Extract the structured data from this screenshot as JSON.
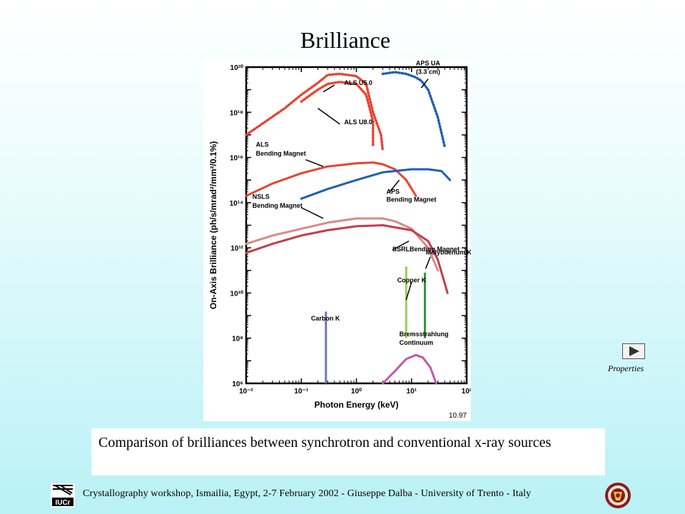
{
  "slide": {
    "title": "Brilliance",
    "caption": "Comparison of  brilliances between synchrotron and conventional x-ray sources",
    "footer": "Crystallography workshop, Ismailia, Egypt, 2-7 February  2002 - Giuseppe Dalba -  University of Trento - Italy",
    "properties_label": "Properties",
    "logo_left": "IUCr",
    "logo_right_icon": "university-seal-icon",
    "properties_icon": "play-triangle-icon"
  },
  "chart_data": {
    "type": "line",
    "xlabel": "Photon Energy (keV)",
    "ylabel": "On-Axis Brilliance (ph/s/mrad²/mm²/0.1%)",
    "xscale": "log",
    "yscale": "log",
    "xlim": [
      0.01,
      100
    ],
    "ylim": [
      1000000.0,
      1e+20
    ],
    "x_ticks": [
      "10⁻²",
      "10⁻¹",
      "10⁰",
      "10¹",
      "10²"
    ],
    "y_ticks": [
      "10⁶",
      "10⁸",
      "10¹⁰",
      "10¹²",
      "10¹⁴",
      "10¹⁶",
      "10¹⁸",
      "10²⁰"
    ],
    "corner_note": "10.97",
    "series": [
      {
        "name": "ALS U5.0",
        "color": "#e8432e",
        "style": "dotted",
        "points": [
          [
            0.01,
            1e+17
          ],
          [
            0.05,
            1.5e+18
          ],
          [
            0.1,
            6e+18
          ],
          [
            0.2,
            2e+19
          ],
          [
            0.3,
            4.5e+19
          ],
          [
            0.5,
            5e+19
          ],
          [
            1,
            4e+19
          ],
          [
            1.5,
            1.8e+19
          ],
          [
            2,
            1e+18
          ],
          [
            2.8,
            1e+17
          ],
          [
            3,
            2e+16
          ]
        ]
      },
      {
        "name": "ALS U8.0",
        "color": "#e8432e",
        "style": "dotted",
        "points": [
          [
            0.1,
            3e+18
          ],
          [
            0.2,
            1e+19
          ],
          [
            0.3,
            1.8e+19
          ],
          [
            0.5,
            2.2e+19
          ],
          [
            1,
            1.8e+19
          ],
          [
            1.5,
            6e+18
          ],
          [
            2,
            4e+17
          ],
          [
            2,
            3e+16
          ]
        ]
      },
      {
        "name": "APS UA (3.3 cm)",
        "color": "#1d5fb5",
        "style": "dotted",
        "points": [
          [
            3,
            5e+19
          ],
          [
            5,
            6e+19
          ],
          [
            8,
            5e+19
          ],
          [
            12,
            3.5e+19
          ],
          [
            15,
            2.5e+19
          ],
          [
            20,
            1e+19
          ],
          [
            30,
            6e+17
          ],
          [
            40,
            3e+16
          ]
        ]
      },
      {
        "name": "ALS Bending Magnet",
        "color": "#e8432e",
        "style": "solid",
        "points": [
          [
            0.01,
            200000000000000.0
          ],
          [
            0.03,
            700000000000000.0
          ],
          [
            0.1,
            2000000000000000.0
          ],
          [
            0.3,
            4000000000000000.0
          ],
          [
            1,
            5500000000000000.0
          ],
          [
            2,
            6000000000000000.0
          ],
          [
            3,
            5000000000000000.0
          ],
          [
            5,
            3000000000000000.0
          ],
          [
            8,
            1000000000000000.0
          ],
          [
            12,
            200000000000000.0
          ]
        ]
      },
      {
        "name": "APS Bending Magnet",
        "color": "#1d5fb5",
        "style": "solid",
        "points": [
          [
            0.1,
            150000000000000.0
          ],
          [
            0.3,
            400000000000000.0
          ],
          [
            1,
            1000000000000000.0
          ],
          [
            3,
            2200000000000000.0
          ],
          [
            10,
            3000000000000000.0
          ],
          [
            20,
            3000000000000000.0
          ],
          [
            35,
            2500000000000000.0
          ],
          [
            50,
            1000000000000000.0
          ]
        ]
      },
      {
        "name": "NSLS Bending Magnet",
        "color": "#d98a83",
        "style": "solid",
        "points": [
          [
            0.01,
            1500000000000.0
          ],
          [
            0.03,
            3500000000000.0
          ],
          [
            0.1,
            7000000000000.0
          ],
          [
            0.3,
            13000000000000.0
          ],
          [
            1,
            20000000000000.0
          ],
          [
            3,
            20000000000000.0
          ],
          [
            5,
            15000000000000.0
          ],
          [
            10,
            7000000000000.0
          ],
          [
            20,
            1000000000000.0
          ],
          [
            30,
            100000000000.0
          ]
        ]
      },
      {
        "name": "SSRL Bending Magnet",
        "color": "#c43c4a",
        "style": "solid",
        "points": [
          [
            0.01,
            600000000000.0
          ],
          [
            0.03,
            1500000000000.0
          ],
          [
            0.1,
            3500000000000.0
          ],
          [
            0.3,
            6000000000000.0
          ],
          [
            1,
            9000000000000.0
          ],
          [
            3,
            10000000000000.0
          ],
          [
            10,
            6000000000000.0
          ],
          [
            20,
            2000000000000.0
          ],
          [
            30,
            300000000000.0
          ],
          [
            45,
            10000000000.0
          ]
        ]
      },
      {
        "name": "Bremsstrahlung Continuum",
        "color": "#c257b0",
        "style": "solid",
        "points": [
          [
            3,
            1000000.0
          ],
          [
            5,
            3500000.0
          ],
          [
            8,
            12000000.0
          ],
          [
            12,
            18000000.0
          ],
          [
            16,
            14000000.0
          ],
          [
            22,
            5000000.0
          ],
          [
            28,
            1000000.0
          ]
        ]
      }
    ],
    "lines": [
      {
        "name": "Carbon K",
        "color": "#6c78b5",
        "x": 0.28,
        "y_range": [
          1000000.0,
          1500000000.0
        ]
      },
      {
        "name": "Copper K",
        "color": "#8fd450",
        "x": 8.0,
        "y_range": [
          100000000.0,
          150000000000.0
        ]
      },
      {
        "name": "Molybdenum K",
        "color": "#2e9940",
        "x": 17.5,
        "y_range": [
          100000000.0,
          80000000000.0
        ]
      }
    ],
    "annotations": [
      {
        "text": "ALS U5.0",
        "pos": [
          0.6,
          1.6e+19
        ]
      },
      {
        "text": "ALS U8.0",
        "pos": [
          0.6,
          3e+17
        ]
      },
      {
        "text": "APS UA",
        "pos": [
          12,
          1.2e+20
        ]
      },
      {
        "text": "(3.3 cm)",
        "pos": [
          12,
          5e+19
        ]
      },
      {
        "text": "ALS",
        "pos": [
          0.015,
          3e+16
        ]
      },
      {
        "text": "Bending Magnet",
        "pos": [
          0.015,
          1.2e+16
        ]
      },
      {
        "text": "APS",
        "pos": [
          3.5,
          250000000000000.0
        ]
      },
      {
        "text": "Bending Magnet",
        "pos": [
          3.5,
          110000000000000.0
        ]
      },
      {
        "text": "NSLS",
        "pos": [
          0.013,
          150000000000000.0
        ]
      },
      {
        "text": "Bending Magnet",
        "pos": [
          0.013,
          60000000000000.0
        ]
      },
      {
        "text": "SSRLBending Magnet",
        "pos": [
          4.5,
          700000000000.0
        ]
      },
      {
        "text": "Molybdenum K",
        "pos": [
          18,
          500000000000.0
        ]
      },
      {
        "text": "Copper K",
        "pos": [
          5.5,
          30000000000.0
        ]
      },
      {
        "text": "Carbon K",
        "pos": [
          0.15,
          600000000.0
        ]
      },
      {
        "text": "Bremsstrahlung",
        "pos": [
          6,
          120000000.0
        ]
      },
      {
        "text": "Continuum",
        "pos": [
          6,
          50000000.0
        ]
      }
    ]
  }
}
